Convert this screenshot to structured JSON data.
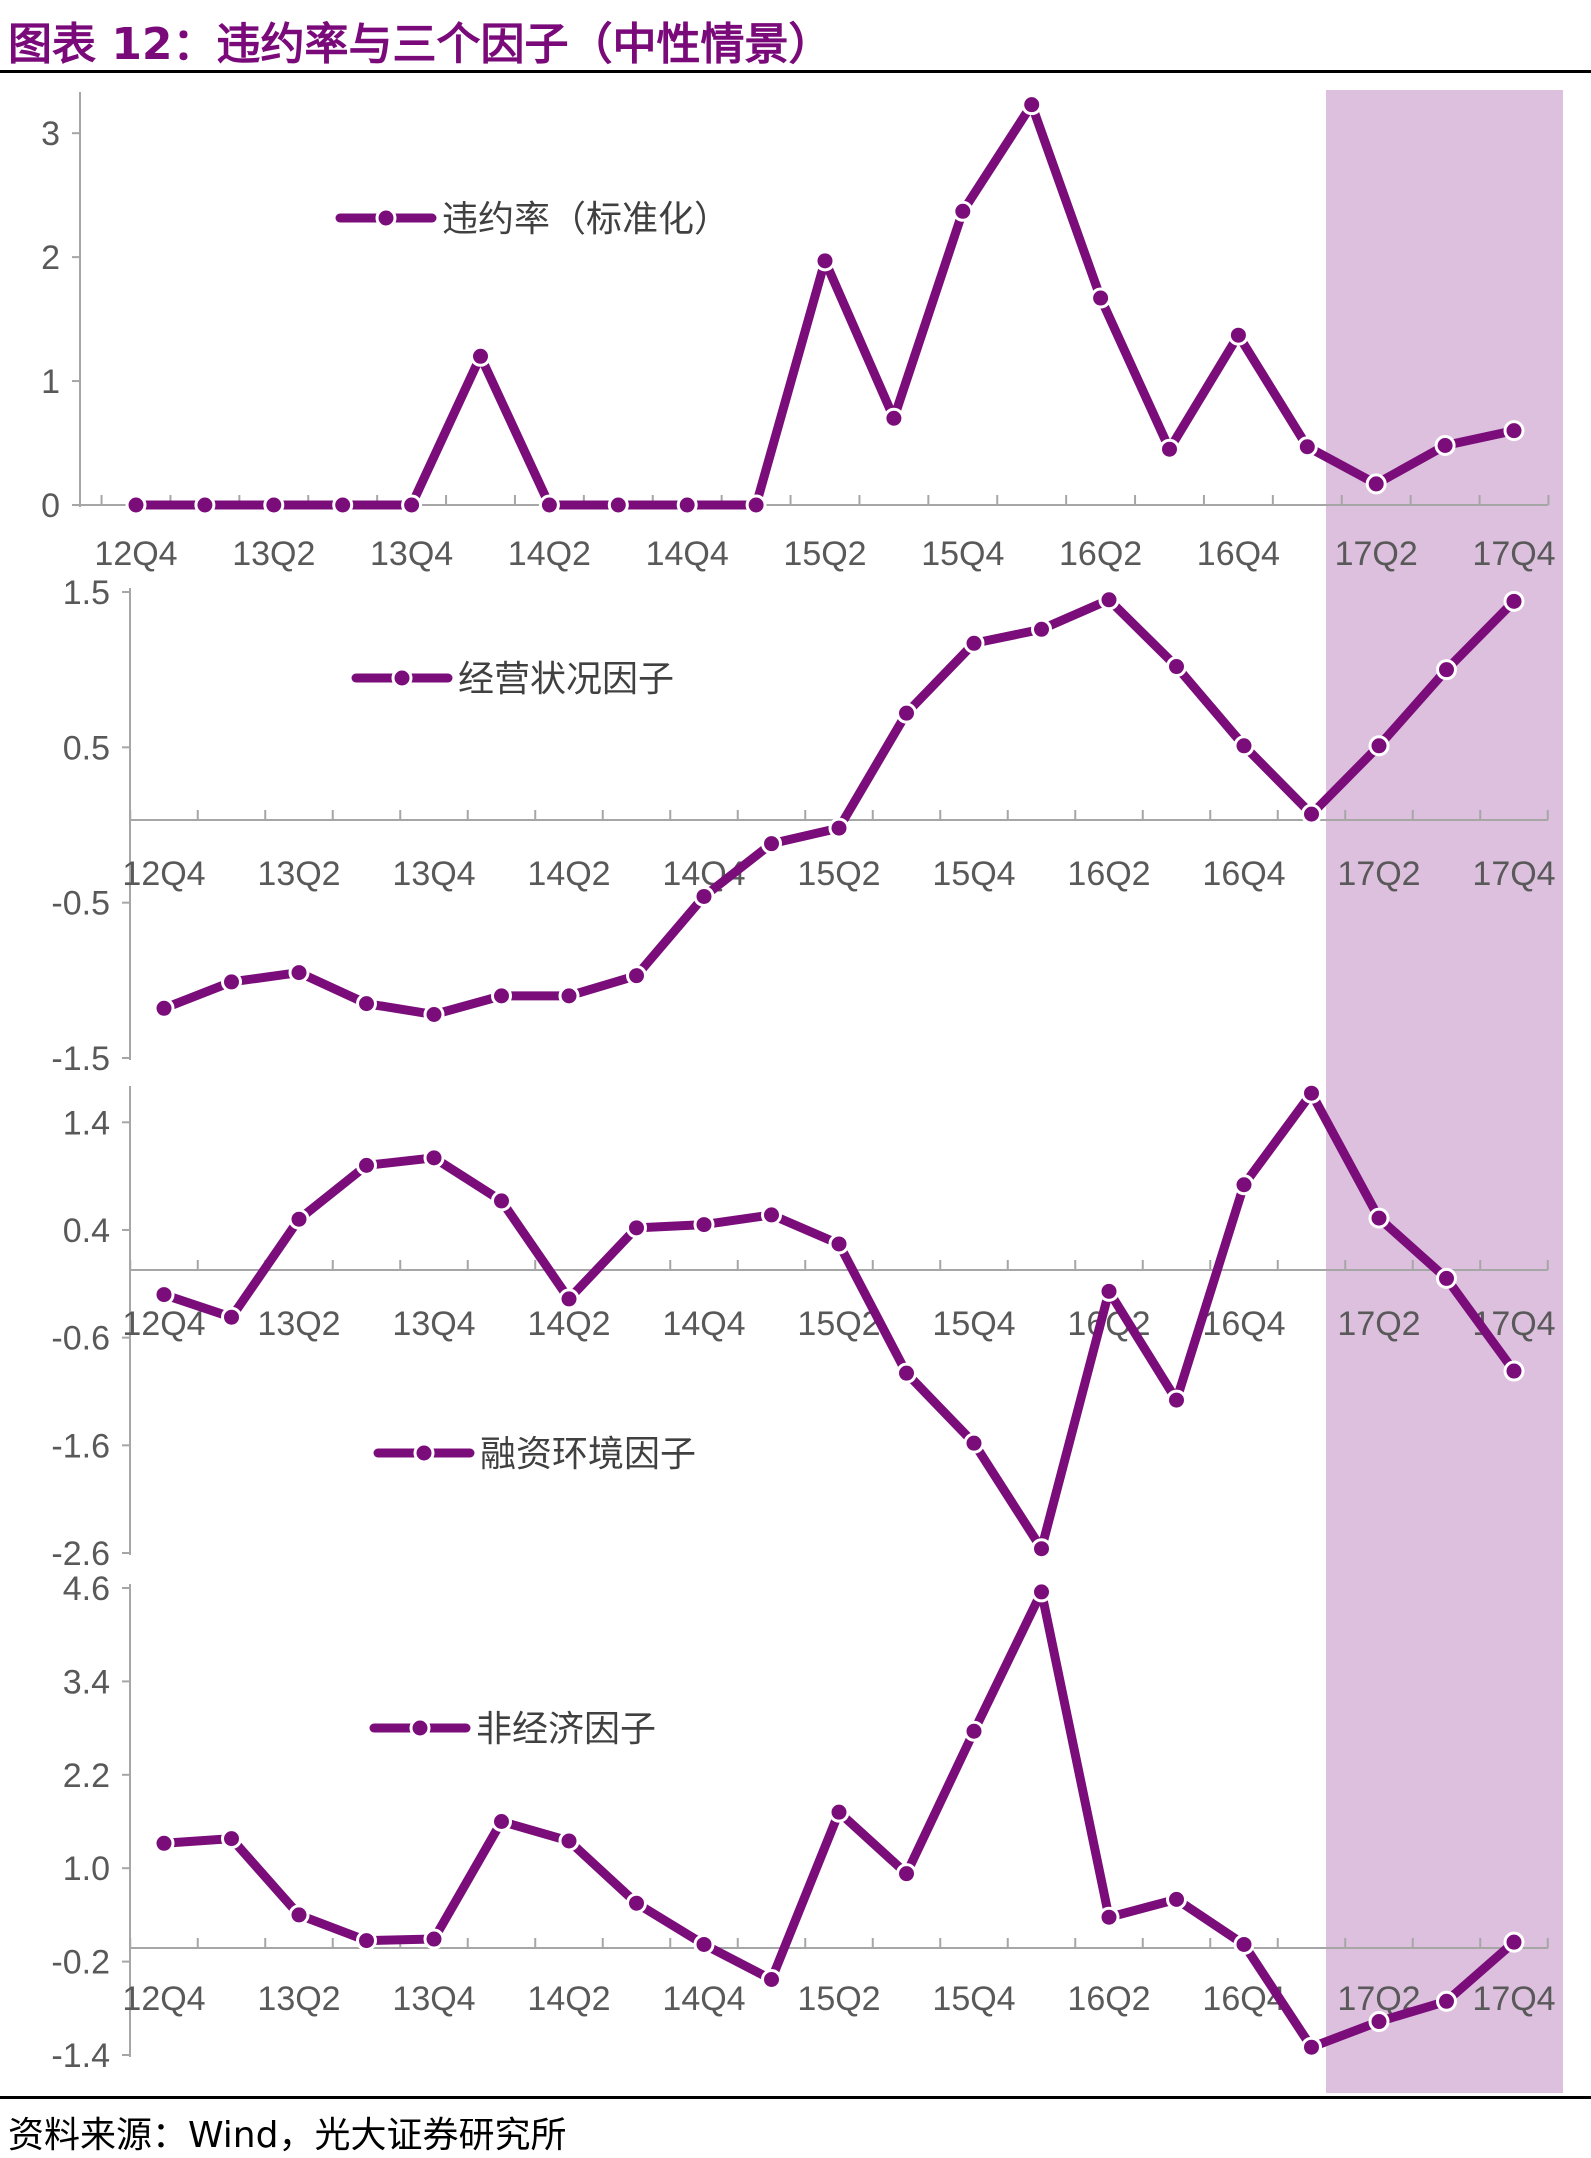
{
  "title": "图表 12：违约率与三个因子（中性情景）",
  "source": "资料来源：Wind，光大证券研究所",
  "colors": {
    "line": "#7b0d7b",
    "highlight": "#ddc0de",
    "axis": "#a6a6a6",
    "tick_text": "#595959"
  },
  "chart_data": [
    {
      "type": "line",
      "legend": "违约率（标准化）",
      "quarters": [
        "12Q4",
        "13Q1",
        "13Q2",
        "13Q3",
        "13Q4",
        "14Q1",
        "14Q2",
        "14Q3",
        "14Q4",
        "15Q1",
        "15Q2",
        "15Q3",
        "15Q4",
        "16Q1",
        "16Q2",
        "16Q3",
        "16Q4",
        "17Q1",
        "17Q2",
        "17Q3",
        "17Q4"
      ],
      "x_tick_labels": [
        "12Q4",
        "13Q2",
        "13Q4",
        "14Q2",
        "14Q4",
        "15Q2",
        "15Q4",
        "16Q2",
        "16Q4",
        "17Q2",
        "17Q4"
      ],
      "y_ticks": [
        "3",
        "2",
        "1",
        "0"
      ],
      "ylim": [
        0,
        3.3
      ],
      "values": [
        0,
        0,
        0,
        0,
        0,
        1.2,
        0,
        0,
        0,
        0,
        1.97,
        0.7,
        2.37,
        3.23,
        1.67,
        0.45,
        1.37,
        0.47,
        0.17,
        0.48,
        0.6
      ],
      "highlight_from": "17Q1"
    },
    {
      "type": "line",
      "legend": "经营状况因子",
      "quarters": [
        "12Q4",
        "13Q1",
        "13Q2",
        "13Q3",
        "13Q4",
        "14Q1",
        "14Q2",
        "14Q3",
        "14Q4",
        "15Q1",
        "15Q2",
        "15Q3",
        "15Q4",
        "16Q1",
        "16Q2",
        "16Q3",
        "16Q4",
        "17Q1",
        "17Q2",
        "17Q3",
        "17Q4"
      ],
      "x_tick_labels": [
        "12Q4",
        "13Q2",
        "13Q4",
        "14Q2",
        "14Q4",
        "15Q2",
        "15Q4",
        "16Q2",
        "16Q4",
        "17Q2",
        "17Q4"
      ],
      "y_ticks": [
        "1.5",
        "0.5",
        "-0.5",
        "-1.5"
      ],
      "ylim": [
        -1.5,
        1.5
      ],
      "values": [
        -1.18,
        -1.01,
        -0.95,
        -1.15,
        -1.22,
        -1.1,
        -1.1,
        -0.97,
        -0.46,
        -0.12,
        -0.02,
        0.72,
        1.17,
        1.26,
        1.45,
        1.02,
        0.51,
        0.07,
        0.51,
        1.0,
        1.44
      ],
      "highlight_from": "17Q1"
    },
    {
      "type": "line",
      "legend": "融资环境因子",
      "quarters": [
        "12Q4",
        "13Q1",
        "13Q2",
        "13Q3",
        "13Q4",
        "14Q1",
        "14Q2",
        "14Q3",
        "14Q4",
        "15Q1",
        "15Q2",
        "15Q3",
        "15Q4",
        "16Q1",
        "16Q2",
        "16Q3",
        "16Q4",
        "17Q1",
        "17Q2",
        "17Q3",
        "17Q4"
      ],
      "x_tick_labels": [
        "12Q4",
        "13Q2",
        "13Q4",
        "14Q2",
        "14Q4",
        "15Q2",
        "15Q4",
        "16Q2",
        "16Q4",
        "17Q2",
        "17Q4"
      ],
      "y_ticks": [
        "1.4",
        "0.4",
        "-0.6",
        "-1.6",
        "-2.6"
      ],
      "ylim": [
        -2.6,
        1.7
      ],
      "values": [
        -0.2,
        -0.41,
        0.5,
        1.0,
        1.07,
        0.67,
        -0.24,
        0.42,
        0.45,
        0.54,
        0.27,
        -0.93,
        -1.58,
        -2.56,
        -0.17,
        -1.18,
        0.82,
        1.67,
        0.51,
        -0.05,
        -0.91
      ],
      "highlight_from": "17Q1"
    },
    {
      "type": "line",
      "legend": "非经济因子",
      "quarters": [
        "12Q4",
        "13Q1",
        "13Q2",
        "13Q3",
        "13Q4",
        "14Q1",
        "14Q2",
        "14Q3",
        "14Q4",
        "15Q1",
        "15Q2",
        "15Q3",
        "15Q4",
        "16Q1",
        "16Q2",
        "16Q3",
        "16Q4",
        "17Q1",
        "17Q2",
        "17Q3",
        "17Q4"
      ],
      "x_tick_labels": [
        "12Q4",
        "13Q2",
        "13Q4",
        "14Q2",
        "14Q4",
        "15Q2",
        "15Q4",
        "16Q2",
        "16Q4",
        "17Q2",
        "17Q4"
      ],
      "y_ticks": [
        "4.6",
        "3.4",
        "2.2",
        "1.0",
        "-0.2",
        "-1.4"
      ],
      "ylim": [
        -1.4,
        4.6
      ],
      "values": [
        1.32,
        1.38,
        0.4,
        0.07,
        0.09,
        1.6,
        1.35,
        0.55,
        0.02,
        -0.43,
        1.72,
        0.93,
        2.76,
        4.55,
        0.37,
        0.6,
        0.02,
        -1.3,
        -0.97,
        -0.71,
        0.05
      ],
      "highlight_from": "17Q1"
    }
  ]
}
